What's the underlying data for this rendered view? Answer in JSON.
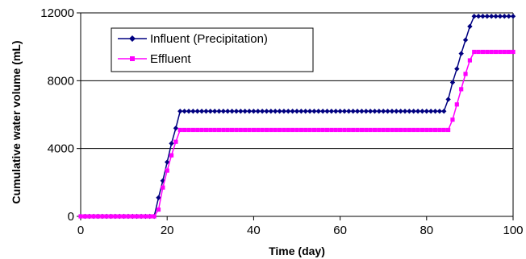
{
  "chart_data": {
    "type": "line",
    "title": "",
    "xlabel": "Time (day)",
    "ylabel": "Cumulative water volume (mL)",
    "xlim": [
      0,
      100
    ],
    "ylim": [
      0,
      12000
    ],
    "xticks": [
      0,
      20,
      40,
      60,
      80,
      100
    ],
    "yticks": [
      0,
      4000,
      8000,
      12000
    ],
    "grid": "horizontal",
    "legend": "top-left",
    "series": [
      {
        "name": "Influent (Precipitation)",
        "color": "#000080",
        "marker": "diamond",
        "x": [
          0,
          1,
          2,
          3,
          4,
          5,
          6,
          7,
          8,
          9,
          10,
          11,
          12,
          13,
          14,
          15,
          16,
          17,
          18,
          19,
          20,
          21,
          22,
          23,
          24,
          25,
          26,
          27,
          28,
          29,
          30,
          31,
          32,
          33,
          34,
          35,
          36,
          37,
          38,
          39,
          40,
          41,
          42,
          43,
          44,
          45,
          46,
          47,
          48,
          49,
          50,
          51,
          52,
          53,
          54,
          55,
          56,
          57,
          58,
          59,
          60,
          61,
          62,
          63,
          64,
          65,
          66,
          67,
          68,
          69,
          70,
          71,
          72,
          73,
          74,
          75,
          76,
          77,
          78,
          79,
          80,
          81,
          82,
          83,
          84,
          85,
          86,
          87,
          88,
          89,
          90,
          91,
          92,
          93,
          94,
          95,
          96,
          97,
          98,
          99,
          100
        ],
        "y": [
          0,
          0,
          0,
          0,
          0,
          0,
          0,
          0,
          0,
          0,
          0,
          0,
          0,
          0,
          0,
          0,
          0,
          0,
          1100,
          2100,
          3200,
          4300,
          5200,
          6200,
          6200,
          6200,
          6200,
          6200,
          6200,
          6200,
          6200,
          6200,
          6200,
          6200,
          6200,
          6200,
          6200,
          6200,
          6200,
          6200,
          6200,
          6200,
          6200,
          6200,
          6200,
          6200,
          6200,
          6200,
          6200,
          6200,
          6200,
          6200,
          6200,
          6200,
          6200,
          6200,
          6200,
          6200,
          6200,
          6200,
          6200,
          6200,
          6200,
          6200,
          6200,
          6200,
          6200,
          6200,
          6200,
          6200,
          6200,
          6200,
          6200,
          6200,
          6200,
          6200,
          6200,
          6200,
          6200,
          6200,
          6200,
          6200,
          6200,
          6200,
          6200,
          6900,
          7900,
          8700,
          9600,
          10400,
          11200,
          11800,
          11800,
          11800,
          11800,
          11800,
          11800,
          11800,
          11800,
          11800,
          11800
        ]
      },
      {
        "name": "Effluent",
        "color": "#FF00FF",
        "marker": "square",
        "x": [
          0,
          1,
          2,
          3,
          4,
          5,
          6,
          7,
          8,
          9,
          10,
          11,
          12,
          13,
          14,
          15,
          16,
          17,
          18,
          19,
          20,
          21,
          22,
          23,
          24,
          25,
          26,
          27,
          28,
          29,
          30,
          31,
          32,
          33,
          34,
          35,
          36,
          37,
          38,
          39,
          40,
          41,
          42,
          43,
          44,
          45,
          46,
          47,
          48,
          49,
          50,
          51,
          52,
          53,
          54,
          55,
          56,
          57,
          58,
          59,
          60,
          61,
          62,
          63,
          64,
          65,
          66,
          67,
          68,
          69,
          70,
          71,
          72,
          73,
          74,
          75,
          76,
          77,
          78,
          79,
          80,
          81,
          82,
          83,
          84,
          85,
          86,
          87,
          88,
          89,
          90,
          91,
          92,
          93,
          94,
          95,
          96,
          97,
          98,
          99,
          100
        ],
        "y": [
          0,
          0,
          0,
          0,
          0,
          0,
          0,
          0,
          0,
          0,
          0,
          0,
          0,
          0,
          0,
          0,
          0,
          0,
          400,
          1700,
          2700,
          3600,
          4400,
          5100,
          5100,
          5100,
          5100,
          5100,
          5100,
          5100,
          5100,
          5100,
          5100,
          5100,
          5100,
          5100,
          5100,
          5100,
          5100,
          5100,
          5100,
          5100,
          5100,
          5100,
          5100,
          5100,
          5100,
          5100,
          5100,
          5100,
          5100,
          5100,
          5100,
          5100,
          5100,
          5100,
          5100,
          5100,
          5100,
          5100,
          5100,
          5100,
          5100,
          5100,
          5100,
          5100,
          5100,
          5100,
          5100,
          5100,
          5100,
          5100,
          5100,
          5100,
          5100,
          5100,
          5100,
          5100,
          5100,
          5100,
          5100,
          5100,
          5100,
          5100,
          5100,
          5100,
          5700,
          6600,
          7500,
          8400,
          9200,
          9700,
          9700,
          9700,
          9700,
          9700,
          9700,
          9700,
          9700,
          9700,
          9700
        ]
      }
    ]
  }
}
